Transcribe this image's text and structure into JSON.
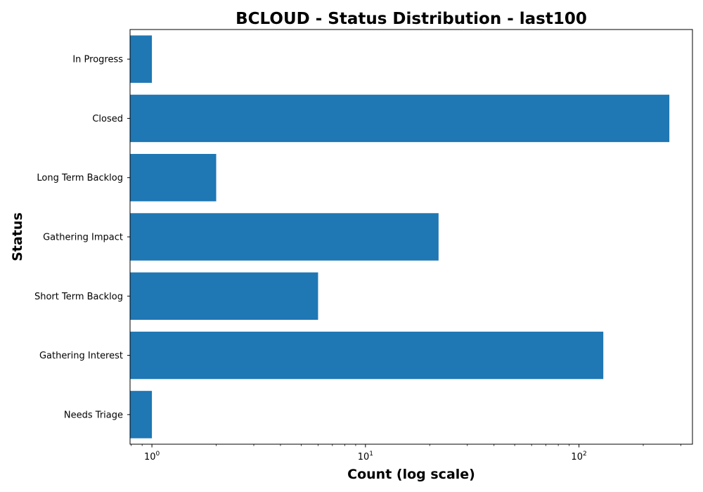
{
  "chart_data": {
    "type": "bar",
    "orientation": "horizontal",
    "title": "BCLOUD - Status Distribution - last100",
    "xlabel": "Count (log scale)",
    "ylabel": "Status",
    "x_scale": "log",
    "xlim": [
      0.79,
      340
    ],
    "categories": [
      "In Progress",
      "Closed",
      "Long Term Backlog",
      "Gathering Impact",
      "Short Term Backlog",
      "Gathering Interest",
      "Needs Triage"
    ],
    "values": [
      1,
      265,
      2,
      22,
      6,
      130,
      1
    ],
    "x_ticks": [
      {
        "base": "10",
        "exp": "0",
        "value": 1
      },
      {
        "base": "10",
        "exp": "1",
        "value": 10
      },
      {
        "base": "10",
        "exp": "2",
        "value": 100
      }
    ],
    "bar_color": "#1f77b4",
    "grid": false,
    "legend": "none"
  }
}
